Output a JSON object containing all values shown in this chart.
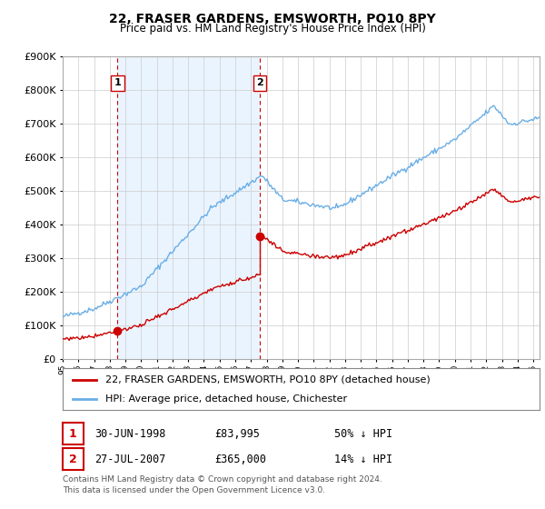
{
  "title": "22, FRASER GARDENS, EMSWORTH, PO10 8PY",
  "subtitle": "Price paid vs. HM Land Registry's House Price Index (HPI)",
  "ylim": [
    0,
    900000
  ],
  "xlim_start": 1995.0,
  "xlim_end": 2025.4,
  "legend_line1": "22, FRASER GARDENS, EMSWORTH, PO10 8PY (detached house)",
  "legend_line2": "HPI: Average price, detached house, Chichester",
  "sale1_label": "1",
  "sale1_date": "30-JUN-1998",
  "sale1_price": "£83,995",
  "sale1_hpi": "50% ↓ HPI",
  "sale1_x": 1998.5,
  "sale1_y": 83995,
  "sale2_label": "2",
  "sale2_date": "27-JUL-2007",
  "sale2_price": "£365,000",
  "sale2_hpi": "14% ↓ HPI",
  "sale2_x": 2007.58,
  "sale2_y": 365000,
  "hpi_color": "#6aaee6",
  "price_color": "#cc0000",
  "vline_color": "#cc0000",
  "shade_color": "#ddeeff",
  "footnote": "Contains HM Land Registry data © Crown copyright and database right 2024.\nThis data is licensed under the Open Government Licence v3.0.",
  "background_color": "#ffffff",
  "grid_color": "#cccccc"
}
